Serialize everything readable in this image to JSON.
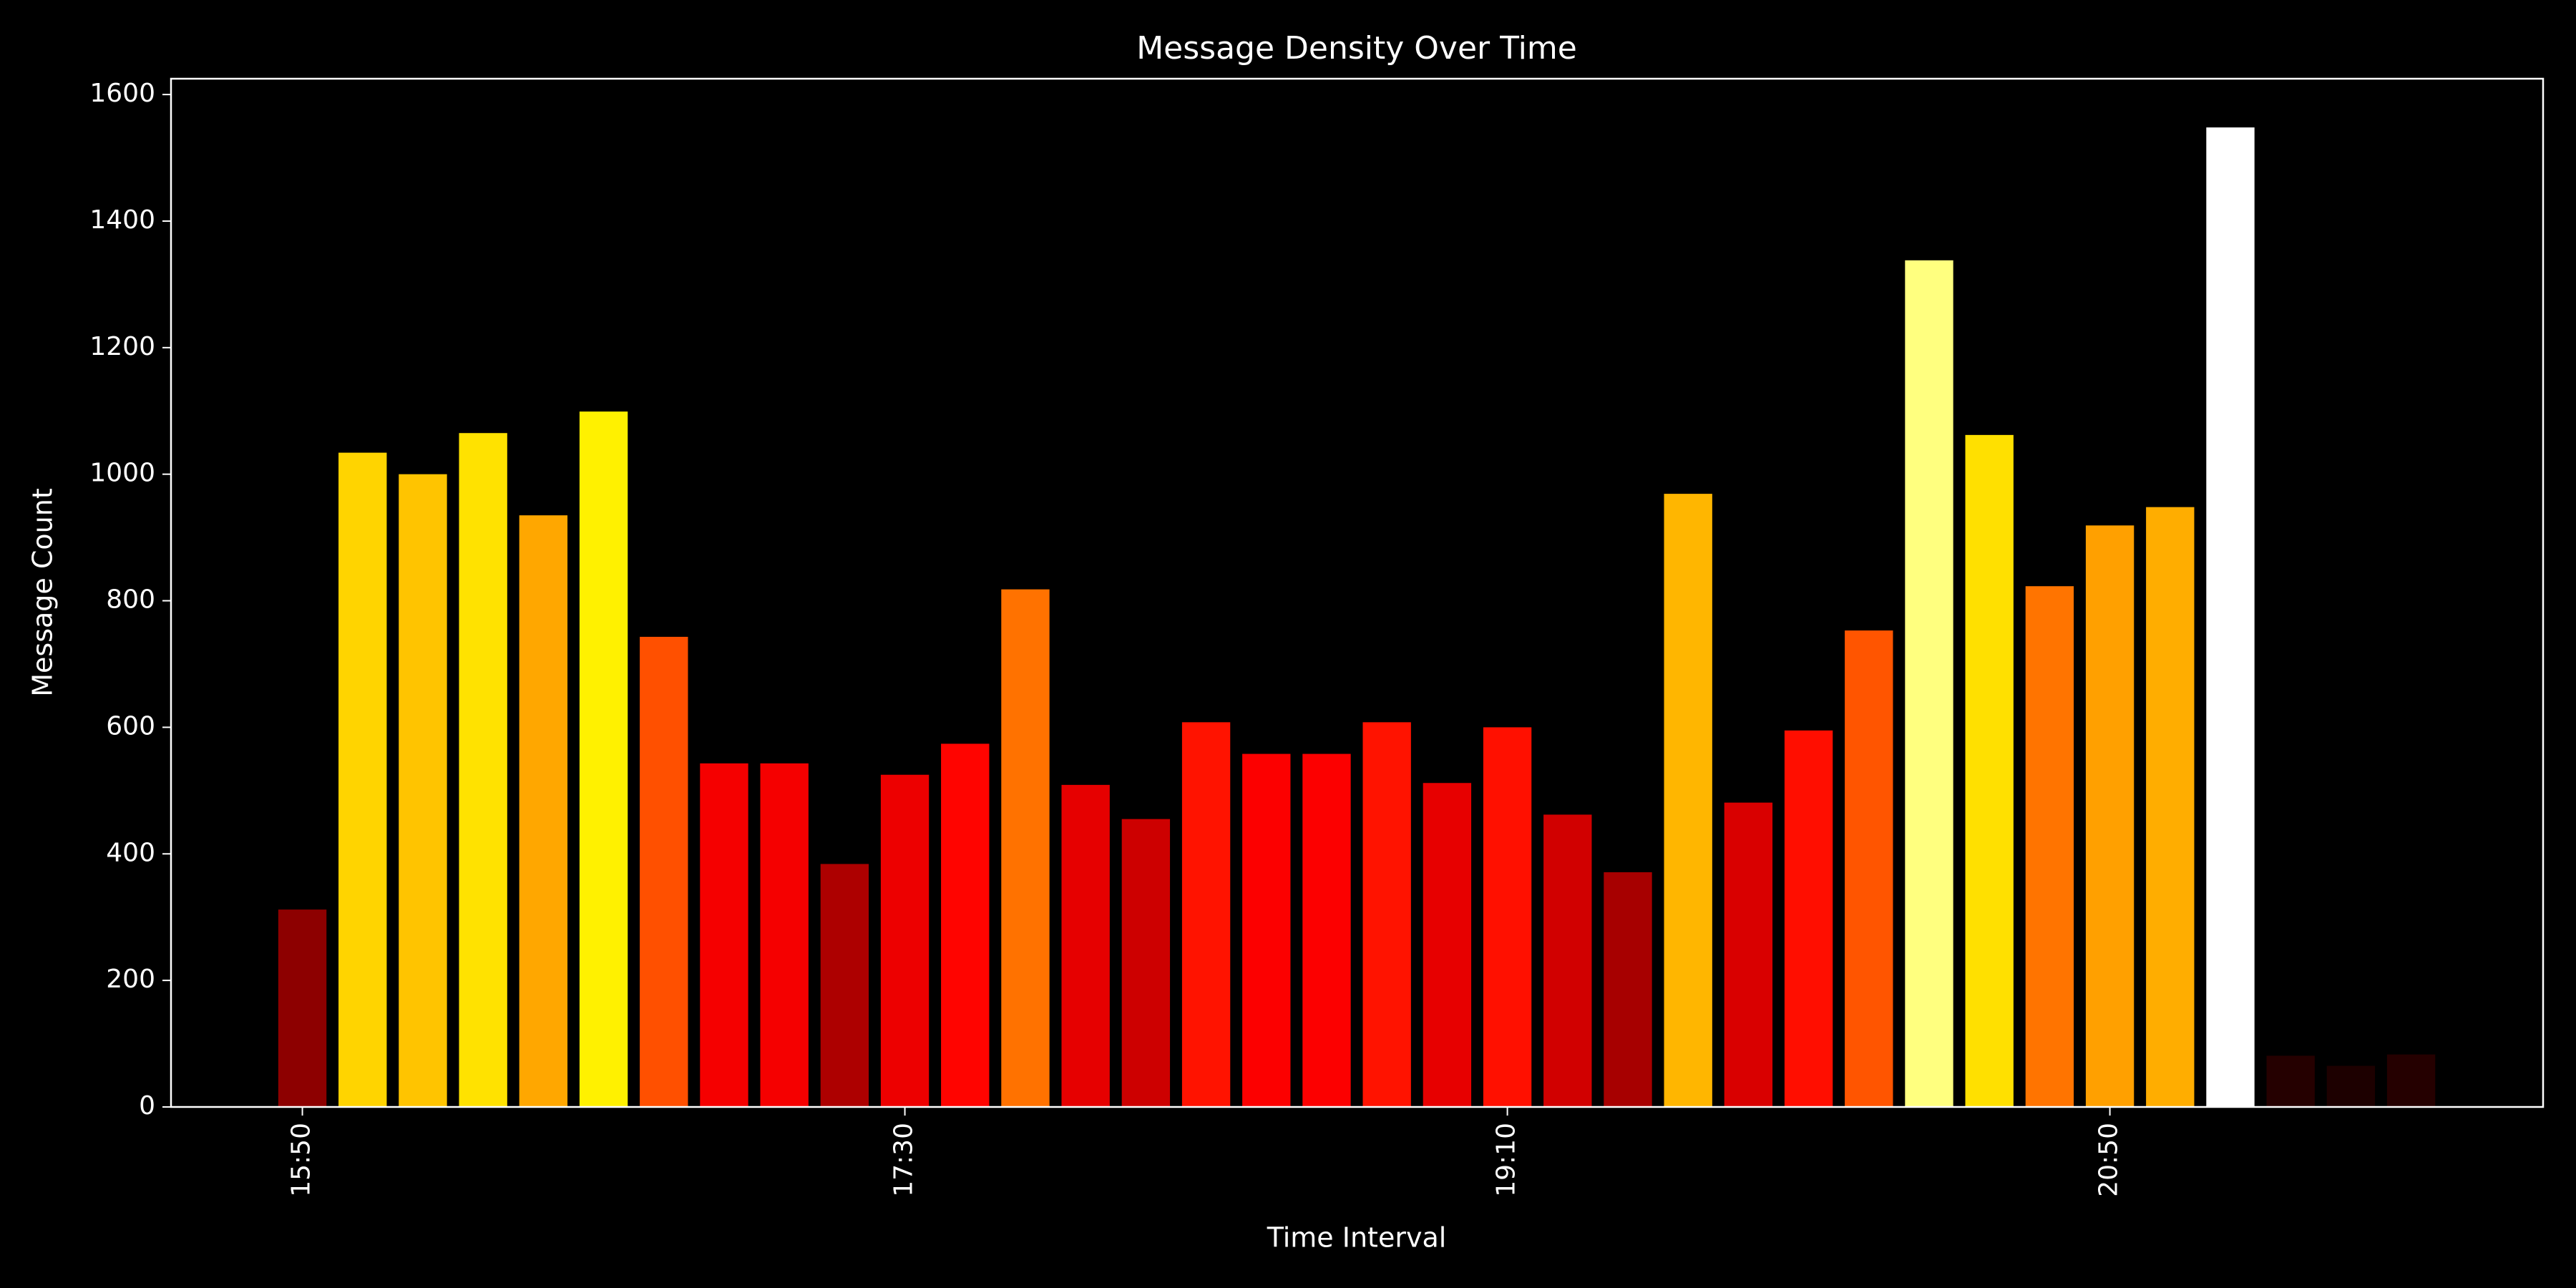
{
  "chart_data": {
    "type": "bar",
    "title": "Message Density Over Time",
    "xlabel": "Time Interval",
    "ylabel": "Message Count",
    "categories": [
      "15:50",
      null,
      null,
      null,
      null,
      null,
      null,
      null,
      null,
      null,
      "17:30",
      null,
      null,
      null,
      null,
      null,
      null,
      null,
      null,
      null,
      "19:10",
      null,
      null,
      null,
      null,
      null,
      null,
      null,
      null,
      null,
      "20:50",
      null,
      null,
      null,
      null,
      null
    ],
    "values": [
      312,
      1034,
      1000,
      1065,
      935,
      1099,
      743,
      543,
      543,
      384,
      525,
      574,
      818,
      509,
      455,
      608,
      558,
      558,
      608,
      512,
      600,
      462,
      371,
      969,
      481,
      595,
      753,
      1338,
      1062,
      823,
      919,
      948,
      1548,
      81,
      65,
      83
    ],
    "colormap": "hot",
    "ylim": [
      0,
      1625
    ],
    "yticks": [
      0,
      200,
      400,
      600,
      800,
      1000,
      1200,
      1400,
      1600
    ]
  }
}
